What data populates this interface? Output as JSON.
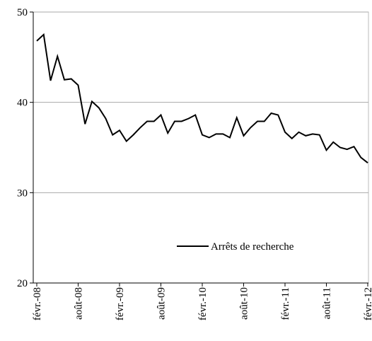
{
  "chart_data": {
    "type": "line",
    "categories": [
      "févr.-08",
      null,
      null,
      null,
      null,
      null,
      "août-08",
      null,
      null,
      null,
      null,
      null,
      "févr.-09",
      null,
      null,
      null,
      null,
      null,
      "août-09",
      null,
      null,
      null,
      null,
      null,
      "févr.-10",
      null,
      null,
      null,
      null,
      null,
      "août-10",
      null,
      null,
      null,
      null,
      null,
      "févr.-11",
      null,
      null,
      null,
      null,
      null,
      "août-11",
      null,
      null,
      null,
      null,
      null,
      "févr.-12"
    ],
    "series": [
      {
        "name": "Arrêts de recherche",
        "color": "#000000",
        "values": [
          46.8,
          47.5,
          42.4,
          45.1,
          42.5,
          42.6,
          41.9,
          37.6,
          40.1,
          39.4,
          38.2,
          36.4,
          36.9,
          35.7,
          36.4,
          37.2,
          37.9,
          37.9,
          38.6,
          36.6,
          37.9,
          37.9,
          38.2,
          38.6,
          36.4,
          36.1,
          36.5,
          36.5,
          36.1,
          38.3,
          36.3,
          37.2,
          37.9,
          37.9,
          38.8,
          38.6,
          36.7,
          36.0,
          36.7,
          36.3,
          36.5,
          36.4,
          34.7,
          35.6,
          35.0,
          34.8,
          35.1,
          33.9,
          33.3
        ]
      }
    ],
    "ylim": [
      20,
      50
    ],
    "yticks": [
      20,
      30,
      40,
      50
    ],
    "grid": true,
    "legend": "lower right"
  }
}
